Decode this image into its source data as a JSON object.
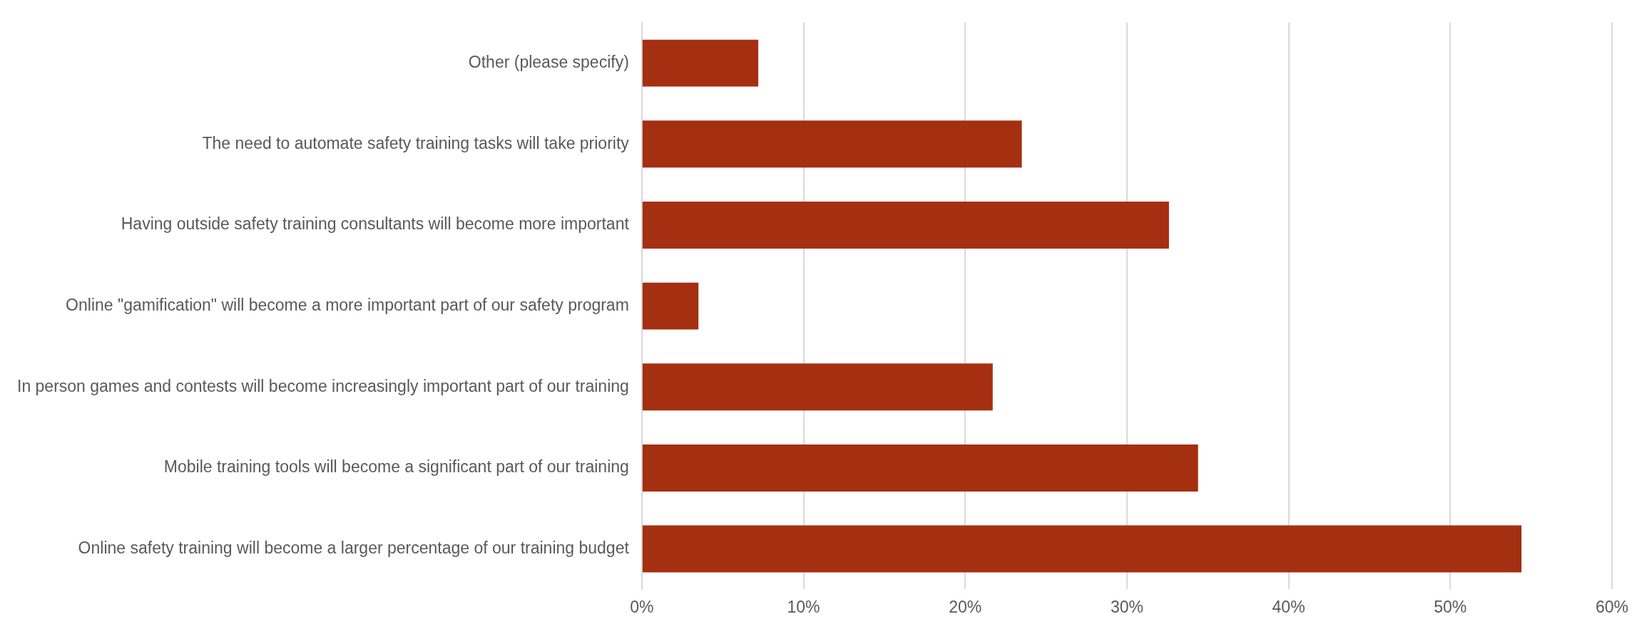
{
  "chart_data": {
    "type": "bar",
    "orientation": "horizontal",
    "categories": [
      "Other (please specify)",
      "The need to automate safety training tasks will take priority",
      "Having outside safety training consultants will become more important",
      "Online \"gamification\" will become a more important part of our safety program",
      "In person games and contests will become increasingly important part of our training",
      "Mobile training tools will become a significant part of our training",
      "Online safety training will become a larger percentage of our training budget"
    ],
    "values": [
      7.2,
      23.5,
      32.6,
      3.5,
      21.7,
      34.4,
      54.4
    ],
    "color": "#a52f11",
    "xlim": [
      0,
      60
    ],
    "xticks": [
      {
        "value": 0,
        "label": "0%"
      },
      {
        "value": 10,
        "label": "10%"
      },
      {
        "value": 20,
        "label": "20%"
      },
      {
        "value": 30,
        "label": "30%"
      },
      {
        "value": 40,
        "label": "40%"
      },
      {
        "value": 50,
        "label": "50%"
      },
      {
        "value": 60,
        "label": "60%"
      }
    ],
    "grid": "x",
    "legend": false
  }
}
